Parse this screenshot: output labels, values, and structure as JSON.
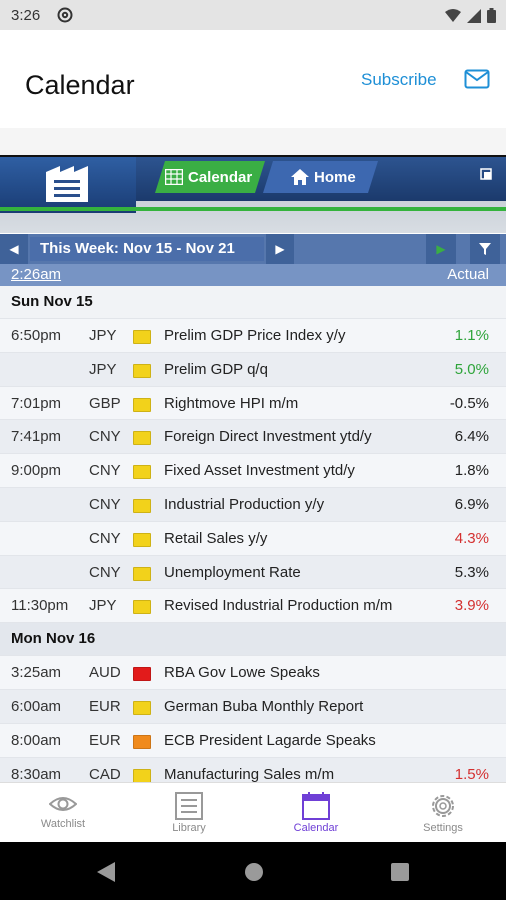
{
  "status_bar": {
    "time": "3:26",
    "icons": [
      "at-sign-icon",
      "wifi-icon",
      "signal-icon",
      "battery-icon"
    ]
  },
  "app_bar": {
    "title": "Calendar",
    "subscribe_label": "Subscribe",
    "mail_icon": "mail-icon"
  },
  "web_header": {
    "tabs": [
      {
        "label": "Calendar",
        "icon": "calendar-grid-icon",
        "active": true
      },
      {
        "label": "Home",
        "icon": "home-icon",
        "active": false
      }
    ]
  },
  "week_bar": {
    "label": "This Week: Nov 15 - Nov 21",
    "time": "2:26am",
    "actual_header": "Actual"
  },
  "days": [
    {
      "label": "Sun Nov 15",
      "rows": [
        {
          "time": "6:50pm",
          "currency": "JPY",
          "impact": "yellow",
          "event": "Prelim GDP Price Index y/y",
          "actual": "1.1%",
          "tone": "pos"
        },
        {
          "time": "",
          "currency": "JPY",
          "impact": "yellow",
          "event": "Prelim GDP q/q",
          "actual": "5.0%",
          "tone": "pos"
        },
        {
          "time": "7:01pm",
          "currency": "GBP",
          "impact": "yellow",
          "event": "Rightmove HPI m/m",
          "actual": "-0.5%",
          "tone": "neu"
        },
        {
          "time": "7:41pm",
          "currency": "CNY",
          "impact": "yellow",
          "event": "Foreign Direct Investment ytd/y",
          "actual": "6.4%",
          "tone": "neu"
        },
        {
          "time": "9:00pm",
          "currency": "CNY",
          "impact": "yellow",
          "event": "Fixed Asset Investment ytd/y",
          "actual": "1.8%",
          "tone": "neu"
        },
        {
          "time": "",
          "currency": "CNY",
          "impact": "yellow",
          "event": "Industrial Production y/y",
          "actual": "6.9%",
          "tone": "neu"
        },
        {
          "time": "",
          "currency": "CNY",
          "impact": "yellow",
          "event": "Retail Sales y/y",
          "actual": "4.3%",
          "tone": "neg"
        },
        {
          "time": "",
          "currency": "CNY",
          "impact": "yellow",
          "event": "Unemployment Rate",
          "actual": "5.3%",
          "tone": "neu"
        },
        {
          "time": "11:30pm",
          "currency": "JPY",
          "impact": "yellow",
          "event": "Revised Industrial Production m/m",
          "actual": "3.9%",
          "tone": "neg"
        }
      ]
    },
    {
      "label": "Mon Nov 16",
      "rows": [
        {
          "time": "3:25am",
          "currency": "AUD",
          "impact": "red",
          "event": "RBA Gov Lowe Speaks",
          "actual": "",
          "tone": "neu"
        },
        {
          "time": "6:00am",
          "currency": "EUR",
          "impact": "yellow",
          "event": "German Buba Monthly Report",
          "actual": "",
          "tone": "neu"
        },
        {
          "time": "8:00am",
          "currency": "EUR",
          "impact": "orange",
          "event": "ECB President Lagarde Speaks",
          "actual": "",
          "tone": "neu"
        },
        {
          "time": "8:30am",
          "currency": "CAD",
          "impact": "yellow",
          "event": "Manufacturing Sales m/m",
          "actual": "1.5%",
          "tone": "neg"
        }
      ]
    }
  ],
  "impact_colors": {
    "yellow": "#f2d21b",
    "red": "#e21b1b",
    "orange": "#f08a1c"
  },
  "tone_colors": {
    "pos": "#2ea43a",
    "neg": "#d43030",
    "neu": "#222222"
  },
  "bottom_nav": [
    {
      "label": "Watchlist",
      "icon": "eye-icon",
      "active": false
    },
    {
      "label": "Library",
      "icon": "library-list-icon",
      "active": false
    },
    {
      "label": "Calendar",
      "icon": "calendar-icon",
      "active": true
    },
    {
      "label": "Settings",
      "icon": "gear-icon",
      "active": false
    }
  ]
}
